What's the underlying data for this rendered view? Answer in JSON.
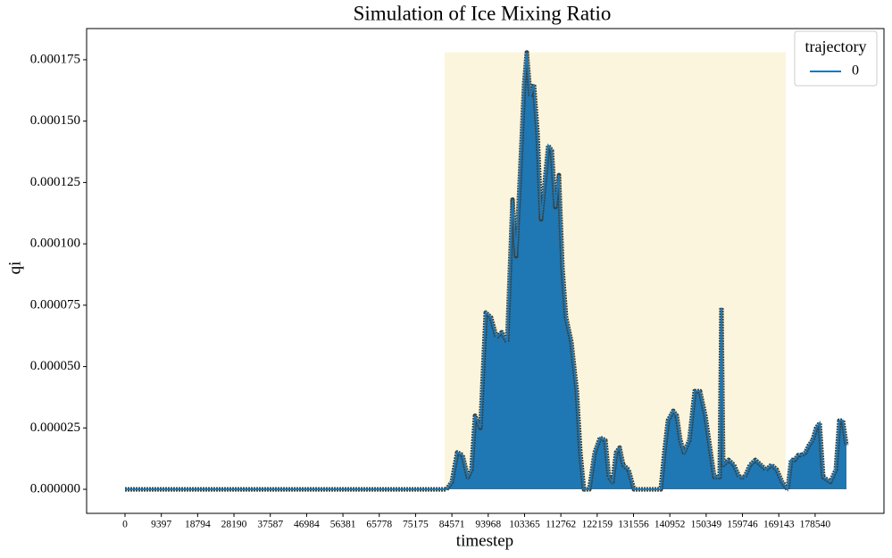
{
  "chart_data": {
    "type": "line",
    "title": "Simulation of Ice Mixing Ratio",
    "xlabel": "timestep",
    "ylabel": "qi",
    "xlim": [
      -9933,
      196350
    ],
    "ylim": [
      -9.8e-06,
      0.0001877
    ],
    "xticks": [
      0,
      9397,
      18794,
      28190,
      37587,
      46984,
      56381,
      65778,
      75175,
      84571,
      93968,
      103365,
      112762,
      122159,
      131556,
      140952,
      150349,
      159746,
      169143,
      178540
    ],
    "yticks": [
      {
        "value": 0,
        "label": "0.000000"
      },
      2.5e-05,
      {
        "value": 5e-05,
        "label": "0.000050"
      },
      7.5e-05,
      {
        "value": 0.0001,
        "label": "0.000100"
      },
      0.000125,
      {
        "value": 0.00015,
        "label": "0.000150"
      },
      0.000175
    ],
    "highlight": {
      "x": [
        82700,
        170940
      ],
      "y": [
        0,
        0.000178
      ],
      "color": "#faf5dc"
    },
    "legend_title": "trajectory",
    "legend_loc": "upper right",
    "series": [
      {
        "name": "0",
        "color": "#1f77b4",
        "outline": "#3d3d33",
        "x": [
          0,
          83160,
          84546,
          85932,
          87318,
          88704,
          89628,
          90552,
          91938,
          93324,
          94710,
          96096,
          97482,
          98868,
          100254,
          101178,
          102102,
          103257,
          103950,
          104874,
          105798,
          106722,
          107646,
          108570,
          109494,
          110418,
          111342,
          112266,
          113190,
          114114,
          115500,
          116886,
          117810,
          118734,
          120120,
          121506,
          122892,
          124278,
          125202,
          126126,
          127050,
          127974,
          128898,
          130284,
          131670,
          138600,
          139524,
          140448,
          141834,
          142758,
          143682,
          144606,
          145992,
          147378,
          148764,
          150150,
          151536,
          152460,
          153846,
          154308,
          154770,
          156156,
          157542,
          158928,
          160314,
          161700,
          163086,
          164472,
          165858,
          167244,
          168630,
          170016,
          171402,
          172326,
          173250,
          174174,
          175098,
          176022,
          176946,
          177870,
          178794,
          179718,
          180642,
          182490,
          183876,
          184800,
          185724,
          186648
        ],
        "values": [
          0,
          0,
          3e-06,
          1.5e-05,
          1.4e-05,
          5e-06,
          8e-06,
          3e-05,
          2.5e-05,
          7.2e-05,
          7e-05,
          6.2e-05,
          6.4e-05,
          6e-05,
          0.000118,
          9.5e-05,
          0.000125,
          0.000165,
          0.000178,
          0.00016,
          0.000165,
          0.000145,
          0.00011,
          0.000125,
          0.00014,
          0.000138,
          0.000115,
          0.000128,
          9e-05,
          7e-05,
          6e-05,
          4e-05,
          1.5e-05,
          0,
          0,
          1.5e-05,
          2.1e-05,
          2e-05,
          5e-06,
          3e-06,
          1.5e-05,
          1.7e-05,
          1e-05,
          8e-06,
          0,
          0,
          1.5e-05,
          2.8e-05,
          3.2e-05,
          3e-05,
          2e-05,
          1.5e-05,
          2e-05,
          4e-05,
          4e-05,
          3e-05,
          1.5e-05,
          5e-06,
          5e-06,
          7.4e-05,
          1e-05,
          1.2e-05,
          1e-05,
          5e-06,
          5e-06,
          1e-05,
          1.2e-05,
          1e-05,
          8e-06,
          1e-05,
          8e-06,
          3e-06,
          0,
          1.2e-05,
          1.2e-05,
          1.4e-05,
          1.4e-05,
          1.5e-05,
          1.8e-05,
          2e-05,
          2.5e-05,
          2.7e-05,
          5e-06,
          3e-06,
          8e-06,
          2.8e-05,
          2.8e-05,
          1.8e-05
        ]
      }
    ]
  }
}
